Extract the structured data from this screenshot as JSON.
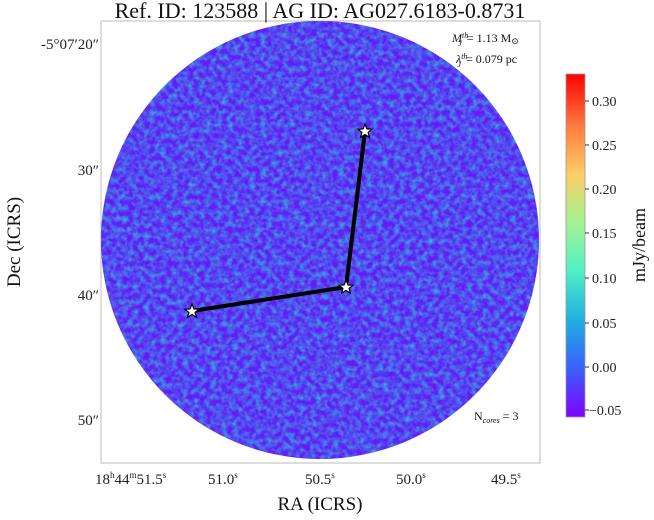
{
  "title": "Ref. ID: 123588 | AG ID: AG027.6183-0.8731",
  "annotations": {
    "mass_threshold": {
      "symbol": "M",
      "sup": "th",
      "sub": "J",
      "value": "= 1.13 M",
      "unit_symbol": "⊙"
    },
    "jeans_length": {
      "symbol": "λ",
      "sup": "th",
      "sub": "J",
      "value": "= 0.079 pc"
    },
    "n_cores": {
      "label": "N",
      "sub": "cores",
      "value": " = 3"
    }
  },
  "axes": {
    "xlabel": "RA (ICRS)",
    "ylabel": "Dec (ICRS)",
    "xticks": [
      {
        "label_main": "18",
        "label_parts": [
          [
            "h",
            ""
          ],
          [
            "44",
            ""
          ],
          [
            "m",
            ""
          ],
          [
            "51.5",
            ""
          ],
          [
            "s",
            ""
          ]
        ]
      },
      {
        "label": "51.0",
        "sup": "s"
      },
      {
        "label": "50.5",
        "sup": "s"
      },
      {
        "label": "50.0",
        "sup": "s"
      },
      {
        "label": "49.5",
        "sup": "s"
      }
    ],
    "yticks": [
      "-5°07′20″",
      "30″",
      "40″",
      "50″"
    ]
  },
  "colorbar": {
    "label": "mJy/beam",
    "ticks": [
      "0.30",
      "0.25",
      "0.20",
      "0.15",
      "0.10",
      "0.05",
      "0.00",
      "−0.05"
    ],
    "vmin": -0.06,
    "vmax": 0.33,
    "colors": [
      "#8000ff",
      "#3a5ffb",
      "#1faee0",
      "#52f1c4",
      "#a6f38f",
      "#ffcc66",
      "#ff7a3e",
      "#ff0000"
    ]
  },
  "cores_count": 3
}
